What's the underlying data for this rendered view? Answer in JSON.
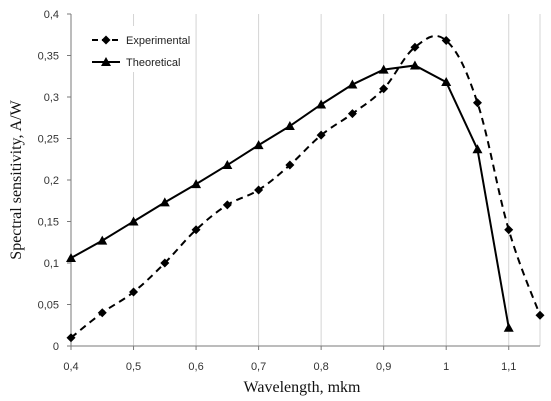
{
  "chart_data": {
    "type": "line",
    "xlabel": "Wavelength, mkm",
    "ylabel": "Spectral sensitivity, A/W",
    "xlim": [
      0.4,
      1.15
    ],
    "ylim": [
      0,
      0.4
    ],
    "x_ticks": [
      "0,4",
      "0,5",
      "0,6",
      "0,7",
      "0,8",
      "0,9",
      "1",
      "1,1"
    ],
    "x_tick_values": [
      0.4,
      0.5,
      0.6,
      0.7,
      0.8,
      0.9,
      1.0,
      1.1
    ],
    "y_ticks": [
      "0",
      "0,05",
      "0,1",
      "0,15",
      "0,2",
      "0,25",
      "0,3",
      "0,35",
      "0,4"
    ],
    "y_tick_values": [
      0,
      0.05,
      0.1,
      0.15,
      0.2,
      0.25,
      0.3,
      0.35,
      0.4
    ],
    "grid": "vertical",
    "legend_position": "top-left",
    "series": [
      {
        "name": "Experimental",
        "style": "dashed",
        "marker": "diamond",
        "color": "#000000",
        "x": [
          0.4,
          0.45,
          0.5,
          0.55,
          0.6,
          0.65,
          0.7,
          0.75,
          0.8,
          0.85,
          0.9,
          0.95,
          1.0,
          1.05,
          1.1,
          1.15
        ],
        "y": [
          0.01,
          0.04,
          0.065,
          0.1,
          0.14,
          0.17,
          0.188,
          0.218,
          0.254,
          0.28,
          0.31,
          0.36,
          0.368,
          0.293,
          0.14,
          0.037
        ]
      },
      {
        "name": "Theoretical",
        "style": "solid",
        "marker": "triangle",
        "color": "#000000",
        "x": [
          0.4,
          0.45,
          0.5,
          0.55,
          0.6,
          0.65,
          0.7,
          0.75,
          0.8,
          0.85,
          0.9,
          0.95,
          1.0,
          1.05,
          1.1
        ],
        "y": [
          0.106,
          0.127,
          0.15,
          0.173,
          0.195,
          0.218,
          0.242,
          0.265,
          0.291,
          0.315,
          0.333,
          0.338,
          0.318,
          0.237,
          0.022
        ]
      }
    ]
  }
}
